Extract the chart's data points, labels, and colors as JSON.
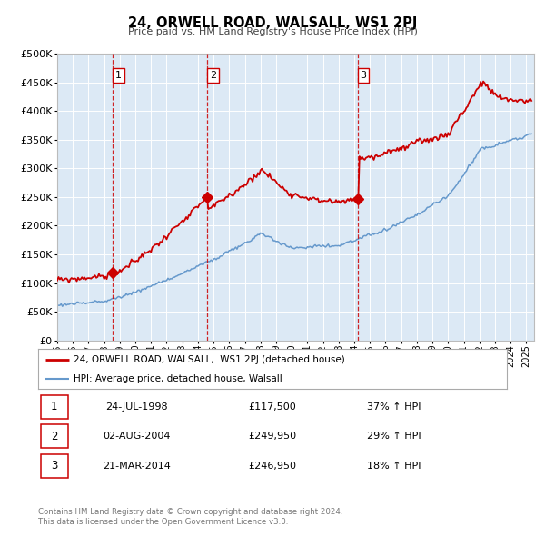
{
  "title": "24, ORWELL ROAD, WALSALL, WS1 2PJ",
  "subtitle": "Price paid vs. HM Land Registry's House Price Index (HPI)",
  "property_label": "24, ORWELL ROAD, WALSALL,  WS1 2PJ (detached house)",
  "hpi_label": "HPI: Average price, detached house, Walsall",
  "transactions": [
    {
      "num": 1,
      "date": "24-JUL-1998",
      "price": 117500,
      "year": 1998.56,
      "pct": "37%",
      "dir": "↑"
    },
    {
      "num": 2,
      "date": "02-AUG-2004",
      "price": 249950,
      "year": 2004.59,
      "pct": "29%",
      "dir": "↑"
    },
    {
      "num": 3,
      "date": "21-MAR-2014",
      "price": 246950,
      "year": 2014.22,
      "pct": "18%",
      "dir": "↑"
    }
  ],
  "footer1": "Contains HM Land Registry data © Crown copyright and database right 2024.",
  "footer2": "This data is licensed under the Open Government Licence v3.0.",
  "property_color": "#cc0000",
  "hpi_color": "#6699cc",
  "plot_bg_color": "#dce9f5",
  "ylim": [
    0,
    500000
  ],
  "yticks": [
    0,
    50000,
    100000,
    150000,
    200000,
    250000,
    300000,
    350000,
    400000,
    450000,
    500000
  ],
  "xmin": 1995.0,
  "xmax": 2025.5
}
